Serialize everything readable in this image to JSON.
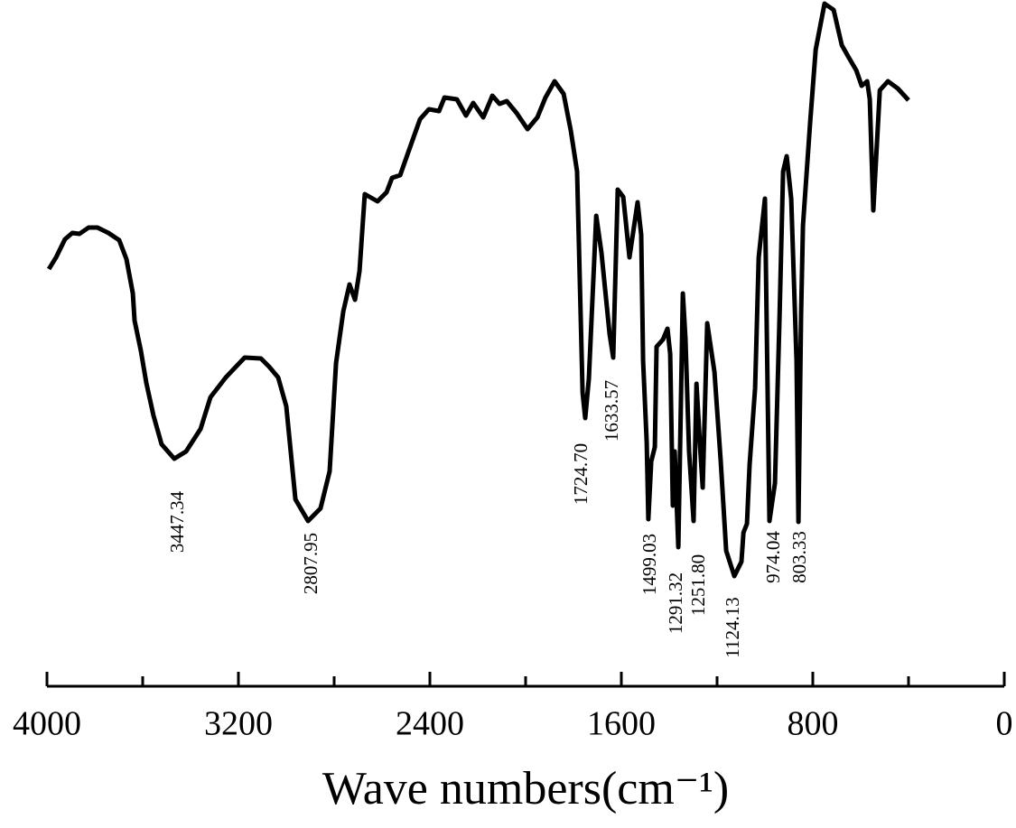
{
  "chart_data": {
    "type": "line",
    "xlabel": "Wave numbers(cm⁻¹)",
    "xlim": [
      4000,
      0
    ],
    "xticks": [
      4000,
      3200,
      2400,
      1600,
      800,
      0
    ],
    "xminorticks": [
      3600,
      2800,
      2000,
      1200,
      400
    ],
    "ylim": [
      0,
      760
    ],
    "series": [
      {
        "color": "#000000",
        "x": [
          3992,
          3962,
          3925,
          3894,
          3864,
          3826,
          3789,
          3743,
          3698,
          3668,
          3641,
          3634,
          3608,
          3585,
          3555,
          3521,
          3468,
          3419,
          3358,
          3317,
          3253,
          3174,
          3106,
          3072,
          3034,
          3000,
          2962,
          2909,
          2857,
          2819,
          2792,
          2762,
          2736,
          2713,
          2694,
          2672,
          2619,
          2581,
          2558,
          2524,
          2479,
          2441,
          2404,
          2362,
          2339,
          2287,
          2249,
          2219,
          2177,
          2139,
          2109,
          2079,
          2038,
          1992,
          1951,
          1917,
          1879,
          1841,
          1811,
          1785,
          1762,
          1751,
          1736,
          1705,
          1683,
          1668,
          1649,
          1634,
          1615,
          1592,
          1566,
          1532,
          1517,
          1509,
          1494,
          1487,
          1475,
          1460,
          1453,
          1426,
          1407,
          1396,
          1385,
          1377,
          1362,
          1343,
          1332,
          1317,
          1298,
          1286,
          1271,
          1260,
          1241,
          1211,
          1185,
          1162,
          1128,
          1098,
          1090,
          1075,
          1064,
          1041,
          1026,
          1000,
          981,
          958,
          939,
          924,
          909,
          890,
          868,
          860,
          849,
          841,
          811,
          788,
          751,
          713,
          679,
          649,
          618,
          596,
          573,
          562,
          547,
          520,
          486,
          445,
          400
        ],
        "values": [
          462,
          475,
          495,
          502,
          501,
          508,
          508,
          502,
          494,
          473,
          435,
          405,
          372,
          336,
          300,
          268,
          252,
          260,
          285,
          320,
          342,
          364,
          363,
          354,
          342,
          310,
          207,
          183,
          197,
          238,
          358,
          415,
          445,
          428,
          460,
          545,
          537,
          547,
          563,
          566,
          600,
          628,
          639,
          637,
          652,
          650,
          632,
          646,
          630,
          654,
          645,
          648,
          635,
          617,
          630,
          652,
          670,
          656,
          615,
          570,
          325,
          297,
          340,
          521,
          480,
          440,
          390,
          364,
          550,
          542,
          475,
          536,
          500,
          360,
          270,
          185,
          249,
          265,
          376,
          384,
          396,
          368,
          200,
          260,
          154,
          435,
          385,
          260,
          183,
          335,
          265,
          220,
          402,
          348,
          250,
          150,
          122,
          138,
          170,
          180,
          245,
          330,
          475,
          540,
          183,
          225,
          410,
          570,
          587,
          540,
          360,
          182,
          410,
          510,
          625,
          705,
          756,
          749,
          710,
          696,
          682,
          665,
          670,
          650,
          527,
          660,
          670,
          662,
          649
        ]
      }
    ],
    "annotations": [
      "3447.34",
      "2807.95",
      "1724.70",
      "1633.57",
      "1499.03",
      "1291.32",
      "1251.80",
      "1124.13",
      "974.04",
      "803.33"
    ]
  }
}
